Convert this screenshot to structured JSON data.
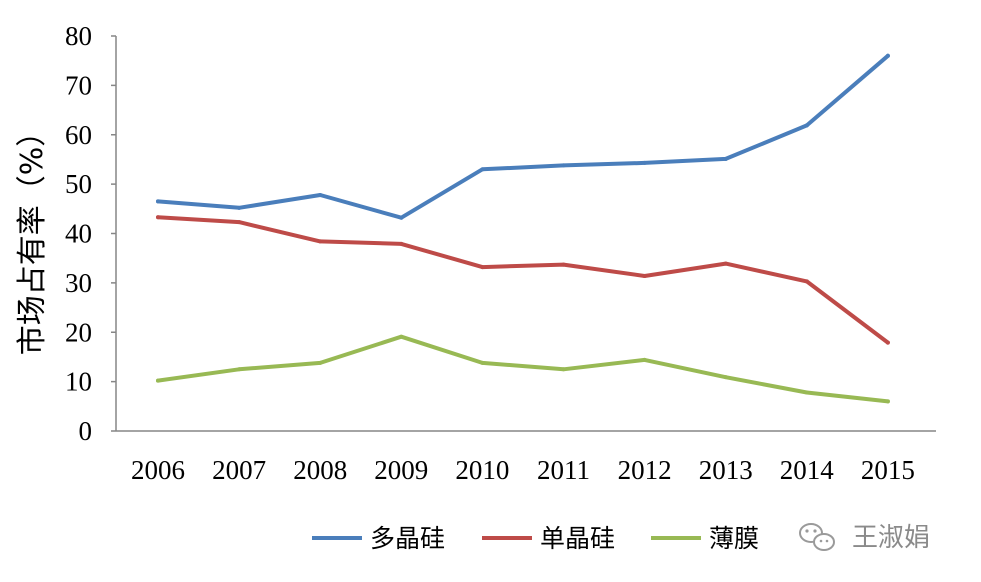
{
  "chart_data": {
    "type": "line",
    "ylabel": "市场占有率（%）",
    "xlabel": "",
    "ylim": [
      0,
      80
    ],
    "yticks": [
      0,
      10,
      20,
      30,
      40,
      50,
      60,
      70,
      80
    ],
    "categories": [
      "2006",
      "2007",
      "2008",
      "2009",
      "2010",
      "2011",
      "2012",
      "2013",
      "2014",
      "2015"
    ],
    "grid": false,
    "legend_position": "bottom",
    "series": [
      {
        "name": "多晶硅",
        "color": "#4a7ebb",
        "values": [
          46.5,
          45.2,
          47.8,
          43.2,
          53.0,
          53.8,
          54.3,
          55.1,
          61.9,
          76.0
        ]
      },
      {
        "name": "单晶硅",
        "color": "#be4b48",
        "values": [
          43.3,
          42.3,
          38.4,
          37.9,
          33.2,
          33.7,
          31.4,
          33.9,
          30.3,
          17.9
        ]
      },
      {
        "name": "薄膜",
        "color": "#98b954",
        "values": [
          10.2,
          12.5,
          13.8,
          19.1,
          13.8,
          12.5,
          14.4,
          10.9,
          7.8,
          6.0
        ]
      }
    ]
  },
  "watermark": {
    "icon": "wechat-icon",
    "text": "王淑娟"
  }
}
